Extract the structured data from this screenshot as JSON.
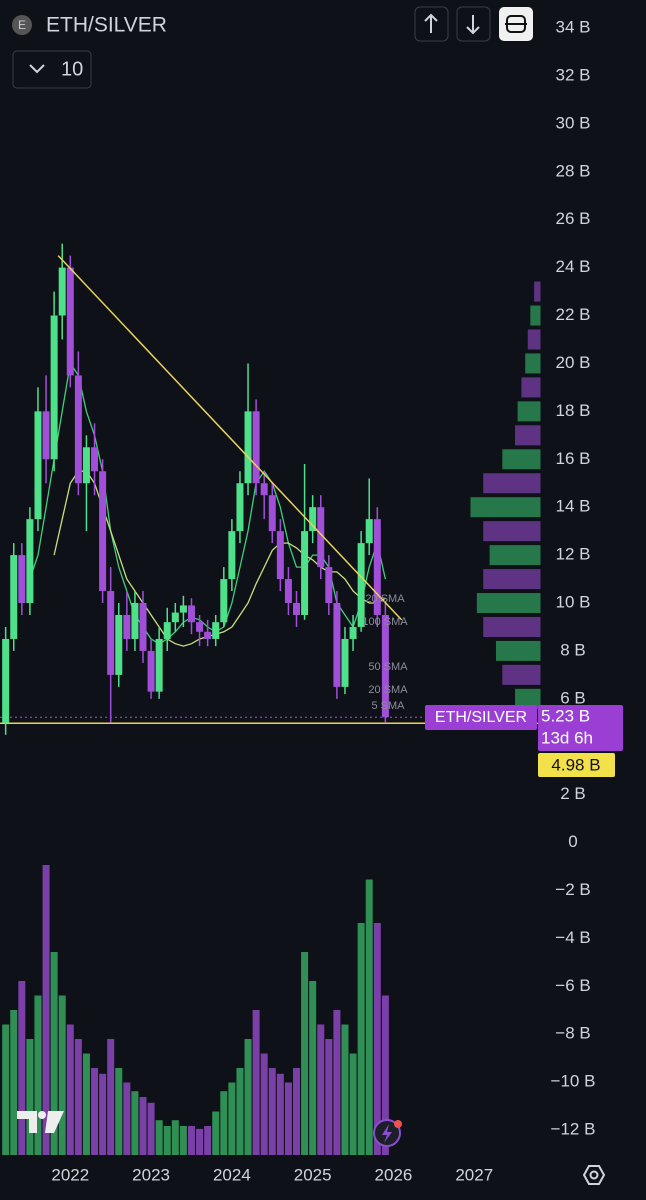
{
  "header": {
    "symbol": "ETH/SILVER",
    "interval": "10"
  },
  "chart_data": {
    "type": "candlestick",
    "x": [
      2021.2,
      2021.3,
      2021.4,
      2021.5,
      2021.6,
      2021.7,
      2021.8,
      2021.9,
      2022.0,
      2022.1,
      2022.2,
      2022.3,
      2022.4,
      2022.5,
      2022.6,
      2022.7,
      2022.8,
      2022.9,
      2023.0,
      2023.1,
      2023.2,
      2023.3,
      2023.4,
      2023.5,
      2023.6,
      2023.7,
      2023.8,
      2023.9,
      2024.0,
      2024.1,
      2024.2,
      2024.3,
      2024.4,
      2024.5,
      2024.6,
      2024.7,
      2024.8,
      2024.9,
      2025.0,
      2025.1,
      2025.2,
      2025.3,
      2025.4,
      2025.5,
      2025.6,
      2025.7,
      2025.8,
      2025.9
    ],
    "open": [
      5,
      8.5,
      12,
      10,
      13.5,
      18,
      16,
      22,
      24,
      19.5,
      15,
      16.5,
      15.5,
      10.5,
      7,
      9.5,
      8.5,
      10,
      8,
      6.3,
      8.5,
      9.2,
      9.6,
      9.9,
      9.2,
      8.8,
      8.5,
      9.2,
      11,
      13,
      15,
      18,
      15,
      14.5,
      13,
      11,
      10,
      9.5,
      13,
      14,
      11.5,
      10,
      6.5,
      8.5,
      9,
      12.5,
      13.5,
      9.5
    ],
    "high": [
      9,
      12.5,
      12.5,
      14,
      19,
      19.5,
      23,
      25,
      24.5,
      20.5,
      17,
      17.5,
      16,
      11.5,
      10,
      10.5,
      10.5,
      10.5,
      8.5,
      9,
      9.8,
      10,
      10.3,
      10.2,
      9.5,
      9.3,
      9.5,
      11.5,
      13.5,
      15.5,
      20,
      18.5,
      15.5,
      15,
      13.5,
      11.5,
      10.5,
      15.8,
      14.5,
      14.5,
      12,
      10.5,
      9,
      9.5,
      13,
      15.2,
      14,
      10
    ],
    "low": [
      4.5,
      8,
      9.5,
      9.5,
      13,
      15,
      15.5,
      21,
      19,
      14.5,
      13,
      14.5,
      10,
      5,
      6.5,
      8,
      8,
      7.5,
      6,
      6,
      8,
      8.8,
      9,
      8.7,
      8.2,
      8.2,
      8.2,
      9,
      10.5,
      12.5,
      14.5,
      14.5,
      13.5,
      12.5,
      10.5,
      9.5,
      9,
      9.3,
      12.5,
      11,
      9.5,
      6,
      6.2,
      8,
      8.8,
      12,
      9,
      5
    ],
    "close": [
      8.5,
      12,
      10,
      13.5,
      18,
      16,
      22,
      24,
      19.5,
      15,
      16.5,
      15.5,
      10.5,
      7,
      9.5,
      8.5,
      10,
      8,
      6.3,
      8.5,
      9.2,
      9.6,
      9.9,
      9.2,
      8.8,
      8.5,
      9.2,
      11,
      13,
      15,
      18,
      15,
      14.5,
      13,
      11,
      10,
      9.5,
      13,
      14,
      11.5,
      10,
      6.5,
      8.5,
      9,
      12.5,
      13.5,
      9.5,
      5.23
    ],
    "volume": [
      45,
      50,
      60,
      40,
      55,
      100,
      70,
      55,
      45,
      40,
      35,
      30,
      28,
      40,
      30,
      25,
      22,
      20,
      18,
      12,
      10,
      12,
      10,
      10,
      9,
      10,
      15,
      22,
      25,
      30,
      40,
      50,
      35,
      30,
      28,
      25,
      30,
      70,
      60,
      45,
      40,
      50,
      45,
      35,
      80,
      95,
      80,
      55
    ],
    "up_color": "#4fe08a",
    "down_color": "#a14fd8",
    "lines": [
      {
        "color": "#3fcf7a",
        "values": [
          null,
          null,
          null,
          11,
          12,
          14,
          16,
          18,
          20,
          19.5,
          18,
          17,
          15.5,
          13,
          11.5,
          10.5,
          9.5,
          9,
          8.5,
          8.3,
          8.5,
          8.8,
          9.2,
          9.4,
          9.3,
          9,
          8.8,
          9,
          10,
          11.5,
          13,
          15,
          15.5,
          15,
          14,
          12.5,
          11.5,
          11.5,
          12,
          12,
          11.5,
          10,
          9.5,
          9,
          10,
          11.5,
          12.5,
          11
        ]
      },
      {
        "color": "#c8e07a",
        "values": [
          null,
          null,
          null,
          null,
          null,
          null,
          12,
          13.5,
          15,
          15.5,
          15.5,
          15,
          14,
          13,
          12,
          11,
          10.5,
          10,
          9.5,
          9,
          8.5,
          8.3,
          8.2,
          8.3,
          8.5,
          8.6,
          8.7,
          8.8,
          9,
          9.5,
          10,
          10.8,
          11.5,
          12.2,
          12.5,
          12.5,
          12.3,
          12,
          11.8,
          11.5,
          11.3,
          11.3,
          11,
          10.5,
          10.2,
          10,
          10,
          10.2
        ]
      }
    ],
    "sma_labels": [
      "20 SMA",
      "100 SMA",
      "50 SMA",
      "20 SMA",
      "5 SMA"
    ],
    "trendline": {
      "x": [
        2021.85,
        2026.1
      ],
      "y": [
        24.5,
        9.3
      ],
      "color": "#e8d35a"
    },
    "hline": 4.98,
    "hline_label": "4.98 B",
    "symbol_label": "ETH/SILVER",
    "last_label": "5.23 B",
    "countdown": "13d 6h",
    "profile": {
      "prices": [
        6,
        7,
        8,
        9,
        10,
        11,
        12,
        13,
        14,
        15,
        16,
        17,
        18,
        19,
        20,
        21,
        22,
        23
      ],
      "values": [
        20,
        30,
        35,
        45,
        50,
        45,
        40,
        45,
        55,
        45,
        30,
        20,
        18,
        15,
        12,
        10,
        8,
        5
      ]
    },
    "xlim": [
      2021.13,
      2027.82
    ],
    "xticks": [
      2022,
      2023,
      2024,
      2025,
      2026,
      2027
    ],
    "ylim": [
      -13.04,
      35.17
    ],
    "yticks": [
      {
        "value": 34,
        "label": "34 B"
      },
      {
        "value": 32,
        "label": "32 B"
      },
      {
        "value": 30,
        "label": "30 B"
      },
      {
        "value": 28,
        "label": "28 B"
      },
      {
        "value": 26,
        "label": "26 B"
      },
      {
        "value": 24,
        "label": "24 B"
      },
      {
        "value": 22,
        "label": "22 B"
      },
      {
        "value": 20,
        "label": "20 B"
      },
      {
        "value": 18,
        "label": "18 B"
      },
      {
        "value": 16,
        "label": "16 B"
      },
      {
        "value": 14,
        "label": "14 B"
      },
      {
        "value": 12,
        "label": "12 B"
      },
      {
        "value": 10,
        "label": "10 B"
      },
      {
        "value": 8,
        "label": "8 B"
      },
      {
        "value": 6,
        "label": "6 B"
      },
      {
        "value": 2,
        "label": "2 B"
      },
      0,
      {
        "value": -2,
        "label": "−2 B"
      },
      {
        "value": -4,
        "label": "−4 B"
      },
      {
        "value": -6,
        "label": "−6 B"
      },
      {
        "value": -8,
        "label": "−8 B"
      },
      {
        "value": -10,
        "label": "−10 B"
      },
      {
        "value": -12,
        "label": "−12 B"
      }
    ]
  }
}
